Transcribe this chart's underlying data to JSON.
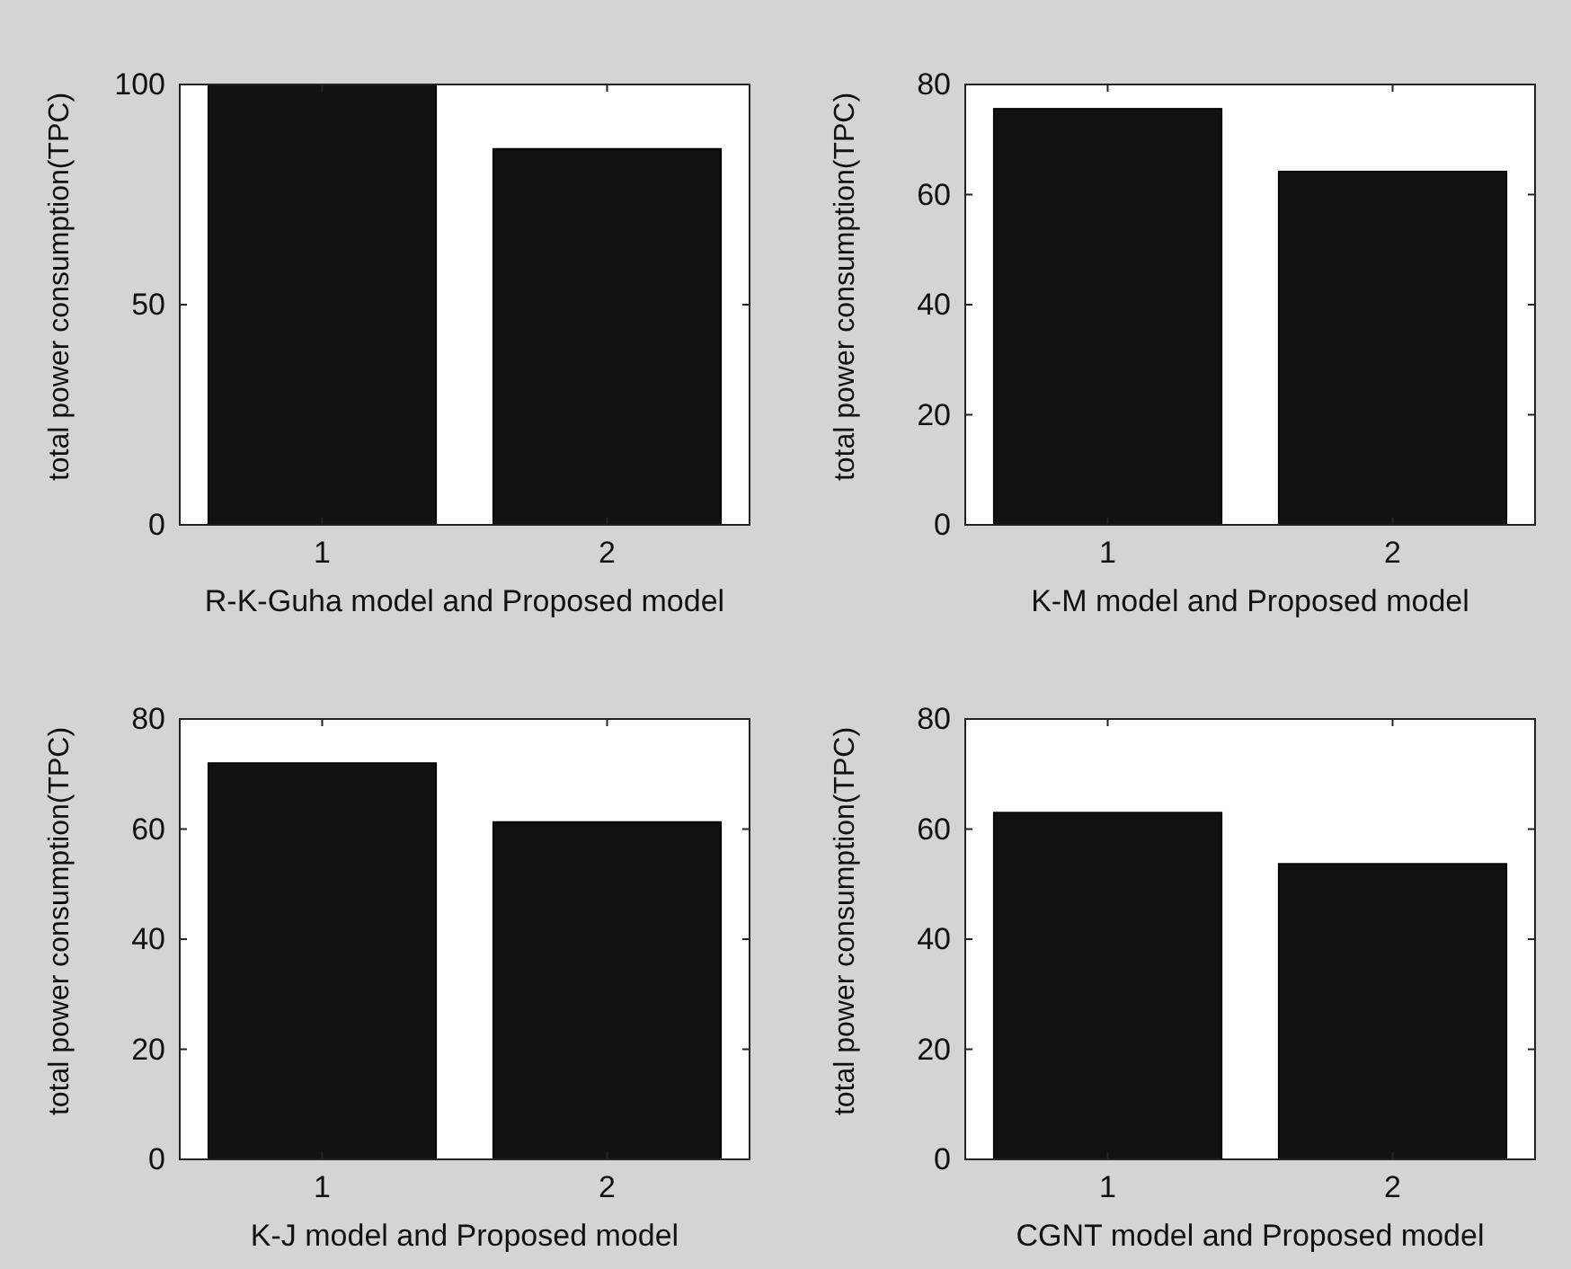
{
  "chart_data": [
    {
      "type": "bar",
      "xlabel": "R-K-Guha model and Proposed model",
      "ylabel": "total power consumption(TPC)",
      "categories": [
        "1",
        "2"
      ],
      "values": [
        100,
        85.4
      ],
      "color": "#111111",
      "ylim": [
        0,
        100
      ],
      "yticks": [
        0,
        50,
        100
      ],
      "grid": false
    },
    {
      "type": "bar",
      "xlabel": "K-M model and Proposed model",
      "ylabel": "total power consumption(TPC)",
      "categories": [
        "1",
        "2"
      ],
      "values": [
        75.6,
        64.2
      ],
      "color": "#111111",
      "ylim": [
        0,
        80
      ],
      "yticks": [
        0,
        20,
        40,
        60,
        80
      ],
      "grid": false
    },
    {
      "type": "bar",
      "xlabel": "K-J  model and Proposed model",
      "ylabel": "total power consumption(TPC)",
      "categories": [
        "1",
        "2"
      ],
      "values": [
        72,
        61.3
      ],
      "color": "#111111",
      "ylim": [
        0,
        80
      ],
      "yticks": [
        0,
        20,
        40,
        60,
        80
      ],
      "grid": false
    },
    {
      "type": "bar",
      "xlabel": "CGNT model and Proposed model",
      "ylabel": "total power consumption(TPC)",
      "categories": [
        "1",
        "2"
      ],
      "values": [
        63,
        53.7
      ],
      "color": "#111111",
      "ylim": [
        0,
        80
      ],
      "yticks": [
        0,
        20,
        40,
        60,
        80
      ],
      "grid": false
    }
  ]
}
